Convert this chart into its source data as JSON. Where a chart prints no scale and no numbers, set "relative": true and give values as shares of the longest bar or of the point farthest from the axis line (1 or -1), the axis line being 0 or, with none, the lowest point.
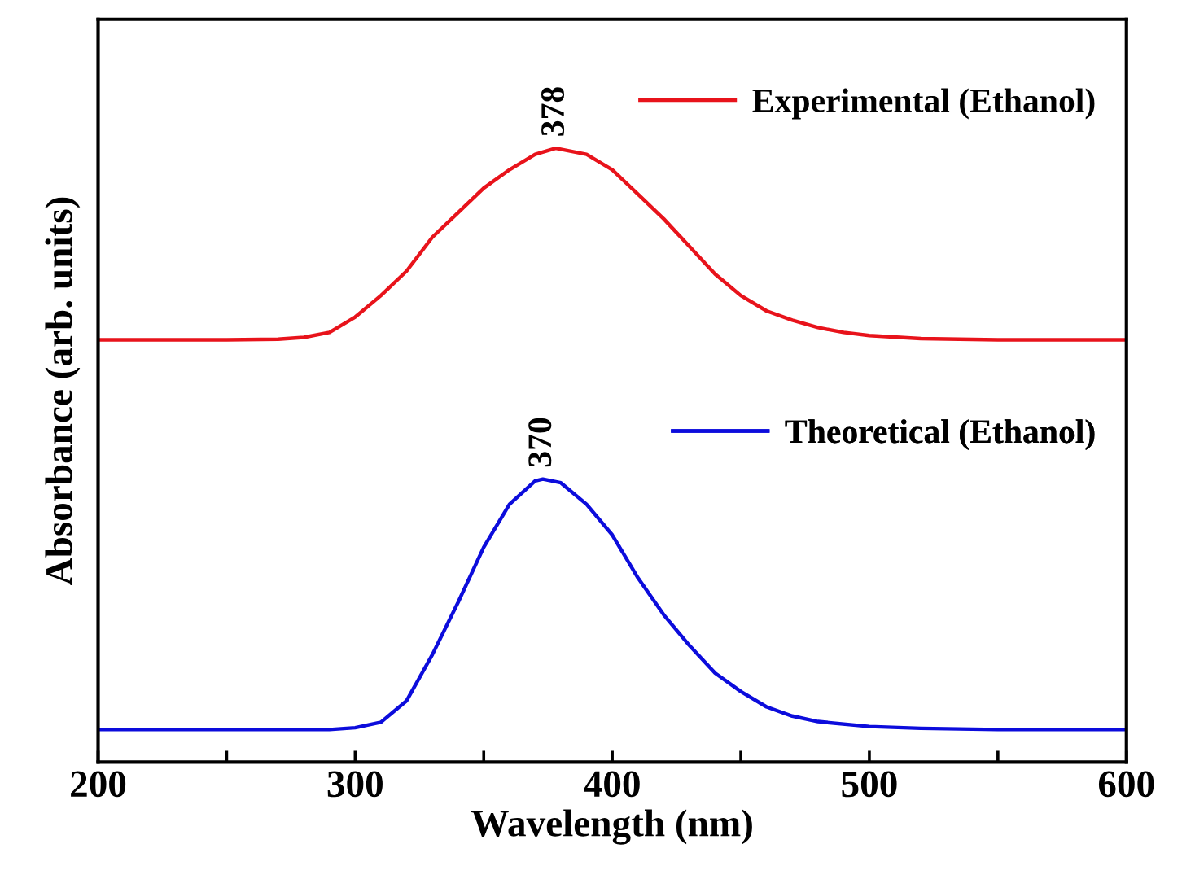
{
  "chart_data": {
    "type": "line",
    "xlabel": "Wavelength (nm)",
    "ylabel": "Absorbance (arb. units)",
    "relative": true,
    "xlim": [
      200,
      600
    ],
    "xticks": [
      200,
      {
        "value": 250,
        "label": null
      },
      300,
      {
        "value": 350,
        "label": null
      },
      400,
      {
        "value": 450,
        "label": null
      },
      500,
      {
        "value": 550,
        "label": null
      },
      600
    ],
    "legend": "right",
    "grid": false,
    "marker": "none",
    "line_style": "solid",
    "series": [
      {
        "name": "Experimental (Ethanol)",
        "color": "#e8131b",
        "x": [
          200,
          250,
          270,
          280,
          290,
          300,
          310,
          320,
          330,
          340,
          350,
          360,
          370,
          378,
          390,
          400,
          410,
          420,
          430,
          440,
          450,
          460,
          470,
          480,
          490,
          500,
          520,
          550,
          600
        ],
        "values": [
          0.688,
          0.688,
          0.689,
          0.692,
          0.7,
          0.725,
          0.76,
          0.8,
          0.855,
          0.895,
          0.935,
          0.965,
          0.99,
          1.0,
          0.99,
          0.965,
          0.925,
          0.885,
          0.84,
          0.795,
          0.76,
          0.735,
          0.72,
          0.708,
          0.7,
          0.695,
          0.69,
          0.688,
          0.688
        ]
      },
      {
        "name": "Theoretical (Ethanol)",
        "color": "#0c0cdc",
        "x": [
          200,
          290,
          300,
          310,
          320,
          330,
          340,
          350,
          360,
          370,
          373,
          380,
          390,
          400,
          410,
          420,
          430,
          440,
          450,
          460,
          470,
          480,
          500,
          520,
          550,
          600
        ],
        "values": [
          0.053,
          0.053,
          0.056,
          0.065,
          0.1,
          0.175,
          0.26,
          0.35,
          0.42,
          0.458,
          0.461,
          0.455,
          0.42,
          0.37,
          0.3,
          0.24,
          0.19,
          0.145,
          0.115,
          0.09,
          0.075,
          0.066,
          0.058,
          0.055,
          0.053,
          0.053
        ]
      }
    ],
    "annotations": [
      {
        "text": "378",
        "x": 378,
        "y": 1.0
      },
      {
        "text": "370",
        "x": 373,
        "y": 0.461
      }
    ]
  }
}
